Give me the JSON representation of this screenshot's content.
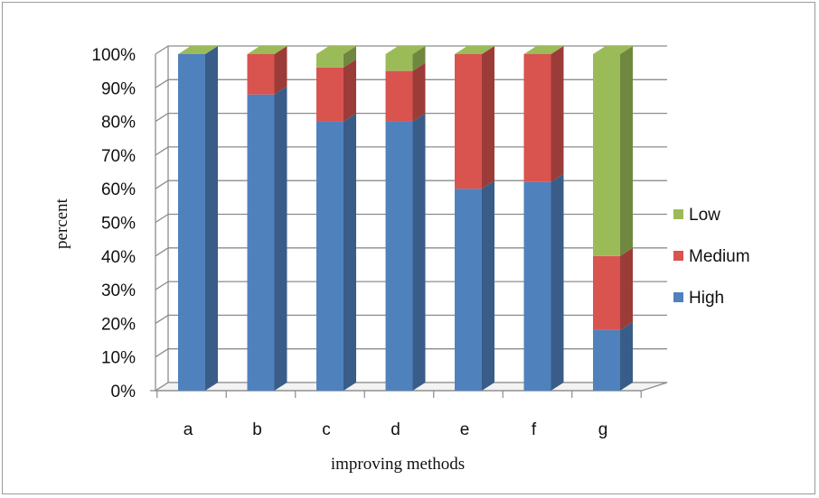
{
  "chart_data": {
    "type": "bar",
    "stacked": true,
    "three_d": true,
    "categories": [
      "a",
      "b",
      "c",
      "d",
      "e",
      "f",
      "g"
    ],
    "series": [
      {
        "name": "High",
        "color": "#4f81bd",
        "values": [
          100,
          88,
          80,
          80,
          60,
          62,
          18
        ]
      },
      {
        "name": "Medium",
        "color": "#d9534f",
        "values": [
          0,
          12,
          16,
          15,
          40,
          38,
          22
        ]
      },
      {
        "name": "Low",
        "color": "#9bbb59",
        "values": [
          0,
          0,
          4,
          5,
          0,
          0,
          60
        ]
      }
    ],
    "ylim": [
      0,
      100
    ],
    "yticks": [
      "0%",
      "10%",
      "20%",
      "30%",
      "40%",
      "50%",
      "60%",
      "70%",
      "80%",
      "90%",
      "100%"
    ],
    "xlabel": "improving methods",
    "ylabel": "percent",
    "grid": true,
    "legend_position": "right",
    "legend_order": [
      "Low",
      "Medium",
      "High"
    ]
  }
}
